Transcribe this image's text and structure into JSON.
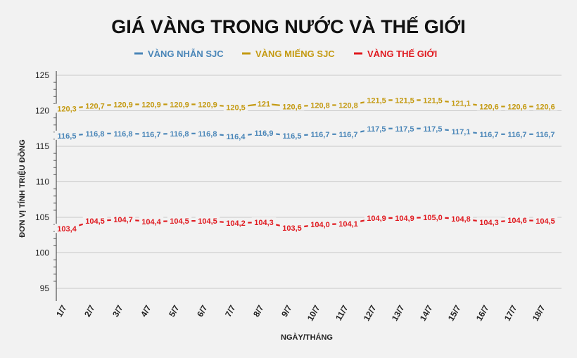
{
  "chart_data": {
    "type": "line",
    "title": "GIÁ VÀNG TRONG NƯỚC VÀ THẾ GIỚI",
    "xlabel": "NGÀY/THÁNG",
    "ylabel": "ĐƠN VỊ TÍNH TRIỆU ĐỒNG",
    "ylim": [
      95,
      125
    ],
    "yticks": [
      "95",
      "100",
      "105",
      "110",
      "115",
      "120",
      "125"
    ],
    "grid": true,
    "legend_position": "top-center",
    "categories": [
      "1/7",
      "2/7",
      "3/7",
      "4/7",
      "5/7",
      "6/7",
      "7/7",
      "8/7",
      "9/7",
      "10/7",
      "11/7",
      "12/7",
      "13/7",
      "14/7",
      "15/7",
      "16/7",
      "17/7",
      "18/7"
    ],
    "series": [
      {
        "name": "VÀNG NHẪN SJC",
        "color": "#4a86b8",
        "values": [
          116.5,
          116.8,
          116.8,
          116.7,
          116.8,
          116.8,
          116.4,
          116.9,
          116.5,
          116.7,
          116.7,
          117.5,
          117.5,
          117.5,
          117.1,
          116.7,
          116.7,
          116.7
        ],
        "labels": [
          "116,5",
          "116,8",
          "116,8",
          "116,7",
          "116,8",
          "116,8",
          "116,4",
          "116,9",
          "116,5",
          "116,7",
          "116,7",
          "117,5",
          "117,5",
          "117,5",
          "117,1",
          "116,7",
          "116,7",
          "116,7"
        ]
      },
      {
        "name": "VÀNG MIẾNG SJC",
        "color": "#c49a12",
        "values": [
          120.3,
          120.7,
          120.9,
          120.9,
          120.9,
          120.9,
          120.5,
          121,
          120.6,
          120.8,
          120.8,
          121.5,
          121.5,
          121.5,
          121.1,
          120.6,
          120.6,
          120.6
        ],
        "labels": [
          "120,3",
          "120,7",
          "120,9",
          "120,9",
          "120,9",
          "120,9",
          "120,5",
          "121",
          "120,6",
          "120,8",
          "120,8",
          "121,5",
          "121,5",
          "121,5",
          "121,1",
          "120,6",
          "120,6",
          "120,6"
        ]
      },
      {
        "name": "VÀNG THẾ GIỚI",
        "color": "#e0191f",
        "values": [
          103.4,
          104.5,
          104.7,
          104.4,
          104.5,
          104.5,
          104.2,
          104.3,
          103.5,
          104.0,
          104.1,
          104.9,
          104.9,
          105.0,
          104.8,
          104.3,
          104.6,
          104.5
        ],
        "labels": [
          "103,4",
          "104,5",
          "104,7",
          "104,4",
          "104,5",
          "104,5",
          "104,2",
          "104,3",
          "103,5",
          "104,0",
          "104,1",
          "104,9",
          "104,9",
          "105,0",
          "104,8",
          "104,3",
          "104,6",
          "104,5"
        ]
      }
    ]
  }
}
